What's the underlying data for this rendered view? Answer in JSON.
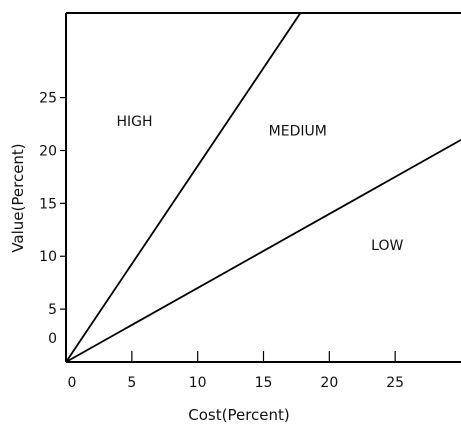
{
  "chart_data": {
    "type": "line",
    "title": "",
    "xlabel": "Cost(Percent)",
    "ylabel": "Value(Percent)",
    "xlim": [
      0,
      30
    ],
    "ylim": [
      0,
      33
    ],
    "x_ticks": [
      0,
      5,
      10,
      15,
      20,
      25
    ],
    "x_tick_labels": [
      "0",
      "5",
      "10",
      "15",
      "20",
      "25"
    ],
    "y_ticks": [
      0,
      5,
      10,
      15,
      20,
      25
    ],
    "y_tick_labels": [
      "0",
      "5",
      "10",
      "15",
      "20",
      "25"
    ],
    "grid": false,
    "series": [
      {
        "x": [
          0,
          17.8
        ],
        "y": [
          0,
          33
        ]
      },
      {
        "x": [
          0,
          30
        ],
        "y": [
          0,
          21
        ]
      }
    ],
    "regions": [
      {
        "label": "HIGH",
        "x": 5.2,
        "y": 22.3
      },
      {
        "label": "MEDIUM",
        "x": 17.6,
        "y": 21.4
      },
      {
        "label": "LOW",
        "x": 24.4,
        "y": 10.6
      }
    ],
    "colors": {
      "line": "#000000",
      "axis": "#000000"
    }
  }
}
